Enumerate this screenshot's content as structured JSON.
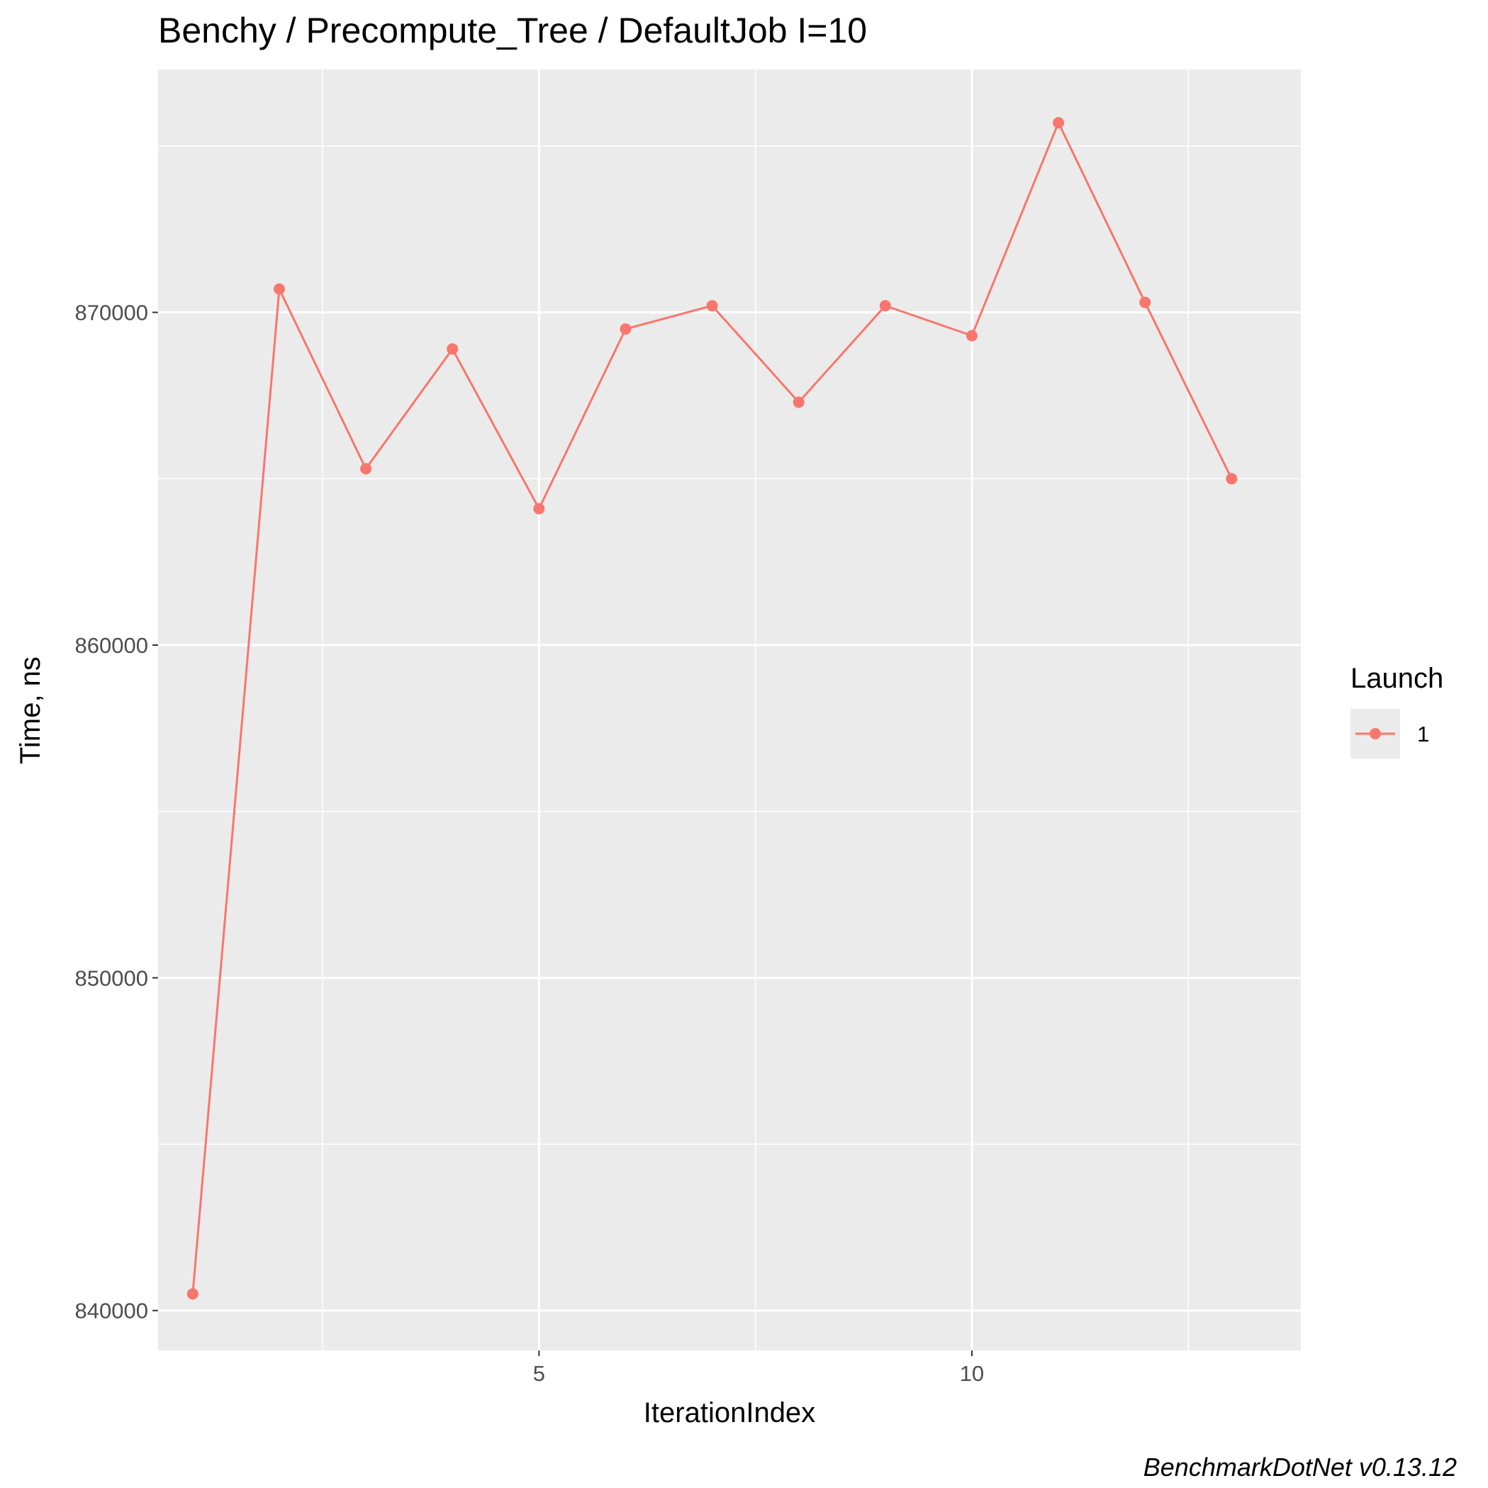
{
  "chart_data": {
    "type": "line",
    "title": "Benchy / Precompute_Tree / DefaultJob I=10",
    "xlabel": "IterationIndex",
    "ylabel": "Time, ns",
    "caption": "BenchmarkDotNet v0.13.12",
    "xlim": [
      0.6,
      13.8
    ],
    "ylim": [
      838800,
      877300
    ],
    "x_ticks": [
      5,
      10
    ],
    "x_tick_labels": [
      "5",
      "10"
    ],
    "y_ticks": [
      840000,
      850000,
      860000,
      870000
    ],
    "y_tick_labels": [
      "840000",
      "850000",
      "860000",
      "870000"
    ],
    "grid": true,
    "legend": {
      "title": "Launch",
      "position": "right",
      "entries": [
        "1"
      ]
    },
    "colors": {
      "panel": "#ebebeb",
      "grid": "#ffffff",
      "series": "#f8766d"
    },
    "series": [
      {
        "name": "1",
        "x": [
          1,
          2,
          3,
          4,
          5,
          6,
          7,
          8,
          9,
          10,
          11,
          12,
          13
        ],
        "values": [
          840500,
          870700,
          865300,
          868900,
          864100,
          869500,
          870200,
          867300,
          870200,
          869300,
          875700,
          870300,
          865000
        ]
      }
    ]
  }
}
